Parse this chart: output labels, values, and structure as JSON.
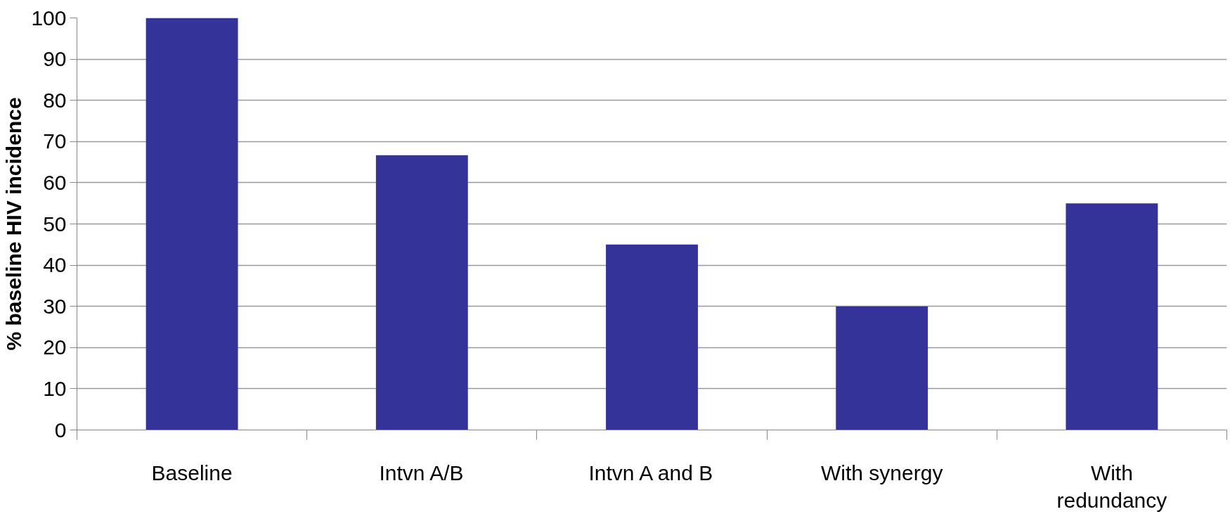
{
  "chart_data": {
    "type": "bar",
    "ylabel": "% baseline HIV incidence",
    "categories": [
      "Baseline",
      "Intvn A/B",
      "Intvn A and B",
      "With synergy",
      "With redundancy"
    ],
    "values": [
      100,
      66.7,
      45,
      30,
      55
    ],
    "color": "#333399",
    "ylim": [
      0,
      100
    ],
    "yticks": [
      0,
      10,
      20,
      30,
      40,
      50,
      60,
      70,
      80,
      90,
      100
    ],
    "grid": "y"
  }
}
